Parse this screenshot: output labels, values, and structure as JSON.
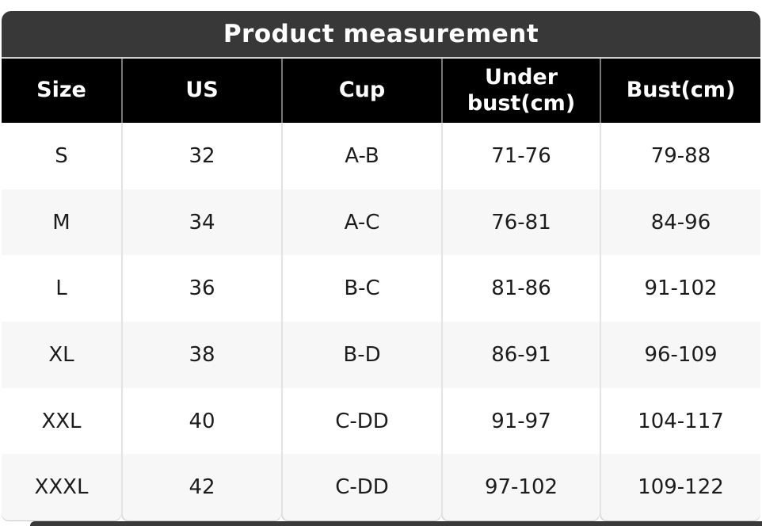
{
  "title": "Product measurement",
  "columns": [
    "Size",
    "US",
    "Cup",
    "Under bust(cm)",
    "Bust(cm)"
  ],
  "rows": [
    {
      "size": "S",
      "us": "32",
      "cup": "A-B",
      "under_bust": "71-76",
      "bust": "79-88"
    },
    {
      "size": "M",
      "us": "34",
      "cup": "A-C",
      "under_bust": "76-81",
      "bust": "84-96"
    },
    {
      "size": "L",
      "us": "36",
      "cup": "B-C",
      "under_bust": "81-86",
      "bust": "91-102"
    },
    {
      "size": "XL",
      "us": "38",
      "cup": "B-D",
      "under_bust": "86-91",
      "bust": "96-109"
    },
    {
      "size": "XXL",
      "us": "40",
      "cup": "C-DD",
      "under_bust": "91-97",
      "bust": "104-117"
    },
    {
      "size": "XXXL",
      "us": "42",
      "cup": "C-DD",
      "under_bust": "97-102",
      "bust": "109-122"
    }
  ],
  "colors": {
    "title_bar_bg": "#383838",
    "title_text": "#ffffff",
    "header_bg": "#000000",
    "header_text": "#ffffff",
    "header_divider": "#777777",
    "body_divider": "#e2e2e2",
    "row_bg": "#ffffff",
    "row_alt_bg": "#f7f7f7",
    "body_text": "#1c1c1c",
    "next_section_bar_bg": "#3a3a3a"
  },
  "chart_data": {
    "type": "table",
    "title": "Product measurement",
    "columns": [
      "Size",
      "US",
      "Cup",
      "Under bust(cm)",
      "Bust(cm)"
    ],
    "rows": [
      [
        "S",
        "32",
        "A-B",
        "71-76",
        "79-88"
      ],
      [
        "M",
        "34",
        "A-C",
        "76-81",
        "84-96"
      ],
      [
        "L",
        "36",
        "B-C",
        "81-86",
        "91-102"
      ],
      [
        "XL",
        "38",
        "B-D",
        "86-91",
        "96-109"
      ],
      [
        "XXL",
        "40",
        "C-DD",
        "91-97",
        "104-117"
      ],
      [
        "XXXL",
        "42",
        "C-DD",
        "97-102",
        "109-122"
      ]
    ],
    "layout": {
      "alternating_row_shading": true,
      "header_style": "black-background-white-bold-text",
      "title_style": "dark-gray-rounded-bar"
    }
  }
}
